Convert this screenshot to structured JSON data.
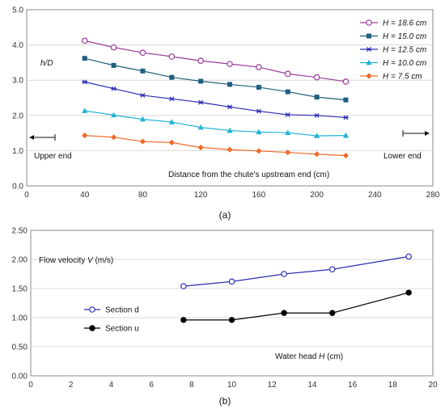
{
  "chart_data": [
    {
      "type": "line",
      "panel_label": "(a)",
      "ylabel_html": [
        "h/D"
      ],
      "xlabel": "Distance from the chute's upstream end (cm)",
      "xlim": [
        0,
        280
      ],
      "ylim": [
        0,
        5.0
      ],
      "x_ticks": [
        "0",
        "40",
        "80",
        "120",
        "160",
        "200",
        "240",
        "280"
      ],
      "y_ticks": [
        "0.0",
        "1.0",
        "2.0",
        "3.0",
        "4.0",
        "5.0"
      ],
      "grid": "horizontal",
      "legend_position": "top-right",
      "annotations": {
        "upper_end": "Upper end",
        "lower_end": "Lower end"
      },
      "x": [
        40,
        60,
        80,
        100,
        120,
        140,
        160,
        180,
        200,
        220
      ],
      "series": [
        {
          "name": "H = 18.6 cm",
          "var": "H",
          "rest": " = 18.6 cm",
          "color": "#9b3a9b",
          "marker": "circle-open",
          "values": [
            4.12,
            3.93,
            3.78,
            3.67,
            3.55,
            3.46,
            3.37,
            3.18,
            3.08,
            2.96
          ]
        },
        {
          "name": "H = 15.0 cm",
          "var": "H",
          "rest": " = 15.0 cm",
          "color": "#1f5f7f",
          "marker": "square",
          "values": [
            3.62,
            3.42,
            3.26,
            3.08,
            2.97,
            2.88,
            2.8,
            2.67,
            2.52,
            2.44
          ]
        },
        {
          "name": "H = 12.5 cm",
          "var": "H",
          "rest": " = 12.5 cm",
          "color": "#2b2bb8",
          "marker": "star",
          "values": [
            2.95,
            2.76,
            2.57,
            2.47,
            2.37,
            2.24,
            2.12,
            2.02,
            2.0,
            1.94
          ]
        },
        {
          "name": "H = 10.0 cm",
          "var": "H",
          "rest": " = 10.0 cm",
          "color": "#1fb3d6",
          "marker": "triangle",
          "values": [
            2.13,
            2.01,
            1.89,
            1.81,
            1.66,
            1.57,
            1.53,
            1.51,
            1.42,
            1.43
          ]
        },
        {
          "name": "H = 7.5 cm",
          "var": "H",
          "rest": " = 7.5 cm",
          "color": "#ee6a2c",
          "marker": "diamond",
          "values": [
            1.43,
            1.38,
            1.26,
            1.23,
            1.09,
            1.03,
            0.99,
            0.95,
            0.9,
            0.86
          ]
        }
      ]
    },
    {
      "type": "line",
      "panel_label": "(b)",
      "ylabel": "Flow velocity V (m/s)",
      "ylabel_parts": [
        "Flow velocity ",
        "V",
        " (m/s)"
      ],
      "xlabel": "Water head H (cm)",
      "xlabel_parts": [
        "Water head ",
        "H",
        " (cm)"
      ],
      "xlim": [
        0,
        20
      ],
      "ylim": [
        0,
        2.5
      ],
      "x_ticks": [
        "0",
        "2",
        "4",
        "6",
        "8",
        "10",
        "12",
        "14",
        "16",
        "18",
        "20"
      ],
      "y_ticks": [
        "0.00",
        "0.50",
        "1.00",
        "1.50",
        "2.00",
        "2.50"
      ],
      "grid": "horizontal",
      "legend_position": "middle-left",
      "series": [
        {
          "name": "Section d",
          "color": "#2e2eb0",
          "marker": "circle-open",
          "x": [
            7.6,
            10.0,
            12.6,
            15.0,
            18.8
          ],
          "values": [
            1.54,
            1.62,
            1.75,
            1.83,
            2.05
          ]
        },
        {
          "name": "Section u",
          "color": "#000000",
          "marker": "circle-filled",
          "x": [
            7.6,
            10.0,
            12.6,
            15.0,
            18.8
          ],
          "values": [
            0.96,
            0.96,
            1.08,
            1.08,
            1.43
          ]
        }
      ]
    }
  ]
}
